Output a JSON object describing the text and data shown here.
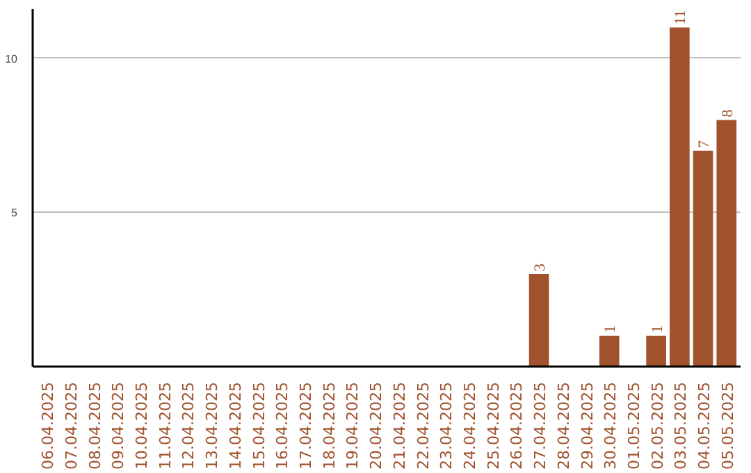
{
  "chart_data": {
    "type": "bar",
    "categories": [
      "06.04.2025",
      "07.04.2025",
      "08.04.2025",
      "09.04.2025",
      "10.04.2025",
      "11.04.2025",
      "12.04.2025",
      "13.04.2025",
      "14.04.2025",
      "15.04.2025",
      "16.04.2025",
      "17.04.2025",
      "18.04.2025",
      "19.04.2025",
      "20.04.2025",
      "21.04.2025",
      "22.04.2025",
      "23.04.2025",
      "24.04.2025",
      "25.04.2025",
      "26.04.2025",
      "27.04.2025",
      "28.04.2025",
      "29.04.2025",
      "30.04.2025",
      "01.05.2025",
      "02.05.2025",
      "03.05.2025",
      "04.05.2025",
      "05.05.2025"
    ],
    "values": [
      0,
      0,
      0,
      0,
      0,
      0,
      0,
      0,
      0,
      0,
      0,
      0,
      0,
      0,
      0,
      0,
      0,
      0,
      0,
      0,
      0,
      3,
      0,
      0,
      1,
      0,
      1,
      11,
      7,
      8
    ],
    "value_labels": [
      null,
      null,
      null,
      null,
      null,
      null,
      null,
      null,
      null,
      null,
      null,
      null,
      null,
      null,
      null,
      null,
      null,
      null,
      null,
      null,
      null,
      "3",
      null,
      null,
      "1",
      null,
      "1",
      "11",
      "7",
      "8"
    ],
    "color": "#a0522d",
    "ylim": [
      0,
      11.6
    ],
    "yticks": [
      5,
      10
    ],
    "grid": "y"
  }
}
